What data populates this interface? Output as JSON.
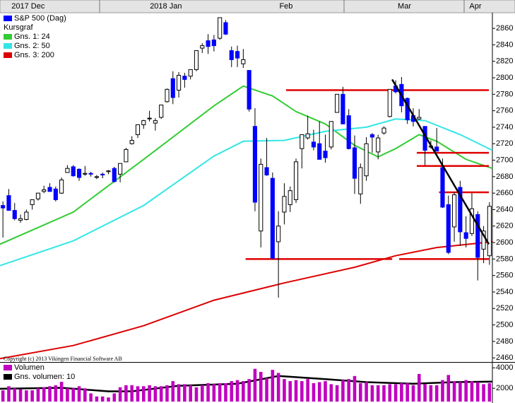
{
  "chart_data": [
    {
      "type": "candlestick",
      "name": "S&P 500 (Dag)",
      "color": "#0000ff",
      "up_color": "#ffffff",
      "legend_heading": "Kursgraf",
      "copyright": "Copyright (c) 2013 Vikingen Financial Software AB",
      "xlim": [
        -0.5,
        83.5
      ],
      "xticks": [
        {
          "value": 4.3,
          "label": "2017 Dec"
        },
        {
          "value": 27.8,
          "label": "2018 Jan"
        },
        {
          "value": 48.3,
          "label": "Feb"
        },
        {
          "value": 68.5,
          "label": "Mar"
        },
        {
          "value": 80.6,
          "label": "Apr"
        }
      ],
      "ylim": [
        2455,
        2879
      ],
      "yticks": [
        2460,
        2480,
        2500,
        2520,
        2540,
        2560,
        2580,
        2600,
        2620,
        2640,
        2660,
        2680,
        2700,
        2720,
        2740,
        2760,
        2780,
        2800,
        2820,
        2840,
        2860
      ],
      "open": [
        2645,
        2657,
        2639,
        2627,
        2628,
        2646,
        2653,
        2662,
        2667,
        2665,
        2660,
        2685,
        2692,
        2689,
        2683,
        2684,
        2679,
        2683,
        2686,
        2690,
        2683,
        2698,
        2720,
        2731,
        2743,
        2751,
        2745,
        2752,
        2771,
        2799,
        2785,
        2802,
        2802,
        2810,
        2836,
        2845,
        2846,
        2848,
        2867,
        2833,
        2832,
        2817,
        2809,
        2741,
        2614,
        2691,
        2678,
        2601,
        2637,
        2646,
        2652,
        2714,
        2727,
        2722,
        2720,
        2711,
        2716,
        2758,
        2780,
        2754,
        2715,
        2659,
        2681,
        2731,
        2710,
        2733,
        2753,
        2790,
        2792,
        2775,
        2754,
        2750,
        2741,
        2716,
        2716,
        2691,
        2646,
        2619,
        2667,
        2612,
        2611,
        2634,
        2592,
        2584
      ],
      "high": [
        2650,
        2665,
        2648,
        2634,
        2640,
        2652,
        2660,
        2669,
        2672,
        2668,
        2679,
        2694,
        2694,
        2690,
        2693,
        2686,
        2682,
        2685,
        2688,
        2692,
        2696,
        2715,
        2729,
        2743,
        2749,
        2760,
        2751,
        2767,
        2787,
        2808,
        2807,
        2806,
        2810,
        2833,
        2842,
        2853,
        2852,
        2873,
        2870,
        2838,
        2839,
        2835,
        2809,
        2763,
        2702,
        2727,
        2685,
        2638,
        2672,
        2668,
        2702,
        2731,
        2754,
        2737,
        2747,
        2731,
        2747,
        2780,
        2789,
        2762,
        2730,
        2696,
        2728,
        2733,
        2731,
        2741,
        2786,
        2797,
        2801,
        2776,
        2763,
        2762,
        2741,
        2724,
        2739,
        2702,
        2657,
        2661,
        2675,
        2632,
        2660,
        2638,
        2620,
        2649
      ],
      "low": [
        2606,
        2639,
        2627,
        2624,
        2627,
        2640,
        2651,
        2660,
        2662,
        2650,
        2659,
        2685,
        2680,
        2675,
        2681,
        2680,
        2677,
        2678,
        2683,
        2673,
        2673,
        2698,
        2719,
        2727,
        2738,
        2747,
        2736,
        2750,
        2770,
        2768,
        2776,
        2788,
        2798,
        2808,
        2830,
        2829,
        2832,
        2846,
        2852,
        2813,
        2813,
        2812,
        2759,
        2638,
        2594,
        2681,
        2580,
        2533,
        2622,
        2637,
        2648,
        2690,
        2725,
        2712,
        2701,
        2697,
        2713,
        2758,
        2744,
        2713,
        2659,
        2647,
        2675,
        2709,
        2701,
        2731,
        2752,
        2781,
        2758,
        2744,
        2741,
        2749,
        2694,
        2714,
        2711,
        2642,
        2586,
        2601,
        2596,
        2594,
        2608,
        2554,
        2575,
        2573
      ],
      "close": [
        2642,
        2639,
        2629,
        2629,
        2637,
        2652,
        2660,
        2664,
        2662,
        2652,
        2676,
        2690,
        2681,
        2679,
        2684,
        2683,
        2680,
        2682,
        2687,
        2674,
        2696,
        2713,
        2724,
        2743,
        2748,
        2751,
        2748,
        2767,
        2786,
        2776,
        2803,
        2798,
        2810,
        2833,
        2839,
        2838,
        2839,
        2873,
        2853,
        2822,
        2824,
        2822,
        2762,
        2649,
        2695,
        2682,
        2581,
        2620,
        2656,
        2663,
        2698,
        2731,
        2732,
        2716,
        2701,
        2703,
        2747,
        2780,
        2744,
        2714,
        2678,
        2691,
        2720,
        2728,
        2727,
        2739,
        2786,
        2783,
        2766,
        2749,
        2747,
        2752,
        2712,
        2717,
        2711,
        2643,
        2588,
        2658,
        2613,
        2605,
        2641,
        2582,
        2614,
        2644
      ],
      "lines": [
        {
          "name": "Gns. 1: 24",
          "color": "#33cc33",
          "x": [
            -0.5,
            12,
            24,
            36,
            41,
            46,
            50,
            55,
            60,
            64,
            67,
            71,
            74,
            79,
            83.5
          ],
          "values": [
            2598,
            2637,
            2701,
            2766,
            2790,
            2778,
            2759,
            2744,
            2718,
            2704,
            2714,
            2731,
            2723,
            2701,
            2690
          ]
        },
        {
          "name": "Gns. 2: 50",
          "color": "#33e6e6",
          "x": [
            -0.5,
            12,
            24,
            36,
            41,
            48,
            55,
            62,
            67,
            72,
            78,
            83.5
          ],
          "values": [
            2572,
            2602,
            2645,
            2705,
            2723,
            2724,
            2735,
            2740,
            2750,
            2748,
            2731,
            2712
          ]
        },
        {
          "name": "Gns. 3: 200",
          "color": "#dd0000",
          "x": [
            -0.5,
            12,
            24,
            36,
            48,
            60,
            67,
            74,
            83.5
          ],
          "values": [
            2459,
            2475,
            2499,
            2530,
            2551,
            2570,
            2584,
            2594,
            2601
          ]
        }
      ],
      "hline_color": "#e00000",
      "hlines": [
        {
          "value": 2785,
          "x": [
            48.3,
            82.9
          ]
        },
        {
          "value": 2709,
          "x": [
            70.6,
            82.9
          ]
        },
        {
          "value": 2693,
          "x": [
            70.6,
            82.9
          ]
        },
        {
          "value": 2661,
          "x": [
            74.4,
            82.9
          ]
        },
        {
          "value": 2580,
          "x": [
            41.4,
            66.4
          ]
        },
        {
          "value": 2580,
          "x": [
            67.6,
            82.9
          ]
        }
      ],
      "trendline": {
        "color": "#000000",
        "x": [
          66.4,
          82.9
        ],
        "values": [
          2798,
          2598
        ]
      }
    },
    {
      "type": "bar",
      "xlim": [
        -0.5,
        83.5
      ],
      "ylim": [
        700,
        4500
      ],
      "yticks": [
        4000,
        2000
      ],
      "series": [
        {
          "name": "Volumen",
          "color": "#c000c0",
          "values": [
            1800,
            2200,
            2000,
            1900,
            1800,
            1800,
            2000,
            2100,
            2200,
            2300,
            2900,
            2000,
            2000,
            2200,
            2000,
            1500,
            1200,
            1200,
            1100,
            1500,
            2100,
            2300,
            2300,
            2200,
            2200,
            2300,
            2200,
            2200,
            2300,
            2700,
            2400,
            2400,
            2300,
            2100,
            2300,
            2500,
            2400,
            2500,
            2500,
            2700,
            2800,
            2700,
            2900,
            3900,
            3600,
            3000,
            3800,
            3500,
            2900,
            2700,
            2800,
            2700,
            2900,
            2500,
            2600,
            2700,
            2400,
            2300,
            2800,
            2900,
            3200,
            2500,
            2600,
            2300,
            2300,
            2300,
            2400,
            2400,
            2500,
            2500,
            2300,
            3400,
            2400,
            2300,
            2300,
            2800,
            3300,
            2700,
            2600,
            2800,
            2700,
            2600,
            2400,
            2500
          ]
        }
      ],
      "lines": [
        {
          "name": "Gns. volumen: 10",
          "color": "#000000",
          "x": [
            -0.5,
            10,
            18,
            22,
            30,
            40,
            47,
            55,
            62,
            70,
            77,
            83.5
          ],
          "values": [
            1950,
            2050,
            1700,
            1700,
            2250,
            2450,
            3200,
            2900,
            2600,
            2450,
            2600,
            2650
          ]
        }
      ]
    }
  ]
}
